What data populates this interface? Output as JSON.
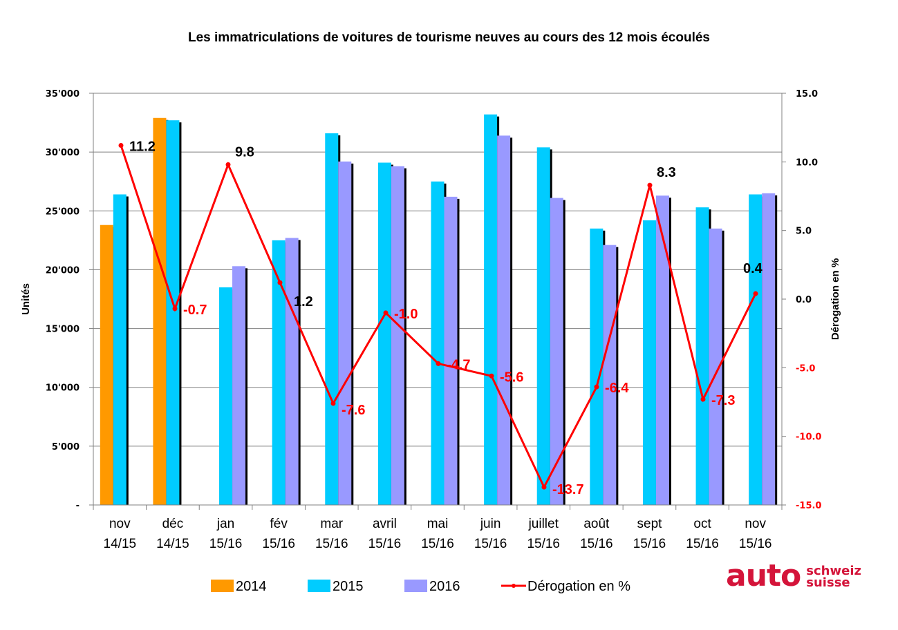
{
  "chart_data": {
    "type": "bar",
    "title": "Les immatriculations de voitures de tourisme neuves au cours des 12 mois écoulés",
    "ylabel": "Unités",
    "y2label": "Dérogation en %",
    "categories": [
      [
        "nov",
        "14/15"
      ],
      [
        "déc",
        "14/15"
      ],
      [
        "jan",
        "15/16"
      ],
      [
        "fév",
        "15/16"
      ],
      [
        "mar",
        "15/16"
      ],
      [
        "avril",
        "15/16"
      ],
      [
        "mai",
        "15/16"
      ],
      [
        "juin",
        "15/16"
      ],
      [
        "juillet",
        "15/16"
      ],
      [
        "août",
        "15/16"
      ],
      [
        "sept",
        "15/16"
      ],
      [
        "oct",
        "15/16"
      ],
      [
        "nov",
        "15/16"
      ]
    ],
    "ylim": [
      0,
      35000
    ],
    "yticks": [
      0,
      5000,
      10000,
      15000,
      20000,
      25000,
      30000,
      35000
    ],
    "ytick_labels": [
      "-",
      "5'000",
      "10'000",
      "15'000",
      "20'000",
      "25'000",
      "30'000",
      "35'000"
    ],
    "y2lim": [
      -15,
      15
    ],
    "y2ticks": [
      15,
      10,
      5,
      0,
      -5,
      -10,
      -15
    ],
    "y2tick_labels": [
      "15.0",
      "10.0",
      "5.0",
      "0.0",
      "-5.0",
      "-10.0",
      "-15.0"
    ],
    "grid": true,
    "legend_position": "bottom",
    "series": [
      {
        "name": "2014",
        "type": "bar",
        "color": "#ff9900",
        "values": [
          23800,
          32900,
          null,
          null,
          null,
          null,
          null,
          null,
          null,
          null,
          null,
          null,
          null
        ]
      },
      {
        "name": "2015",
        "type": "bar",
        "color": "#00ccff",
        "values": [
          26400,
          32700,
          18500,
          22500,
          31600,
          29100,
          27500,
          33200,
          30400,
          23500,
          24200,
          25300,
          26400
        ]
      },
      {
        "name": "2016",
        "type": "bar",
        "color": "#9999ff",
        "values": [
          null,
          null,
          20300,
          22700,
          29200,
          28800,
          26200,
          31400,
          26100,
          22100,
          26300,
          23500,
          26500
        ]
      },
      {
        "name": "Dérogation en %",
        "type": "line",
        "axis": "right",
        "color": "#ff0000",
        "values": [
          11.2,
          -0.7,
          9.8,
          1.2,
          -7.6,
          -1.0,
          -4.7,
          -5.6,
          -13.7,
          -6.4,
          8.3,
          -7.3,
          0.4
        ],
        "labels": [
          "11.2",
          "-0.7",
          "9.8",
          "1.2",
          "-7.6",
          "-1.0",
          "-4.7",
          "-5.6",
          "-13.7",
          "-6.4",
          "8.3",
          "-7.3",
          "0.4"
        ]
      }
    ],
    "colors": {
      "positive_label": "#000000",
      "negative_label": "#ff0000",
      "grid": "#808080"
    }
  },
  "logo": {
    "main": "auto",
    "line1": "schweiz",
    "line2": "suisse"
  }
}
